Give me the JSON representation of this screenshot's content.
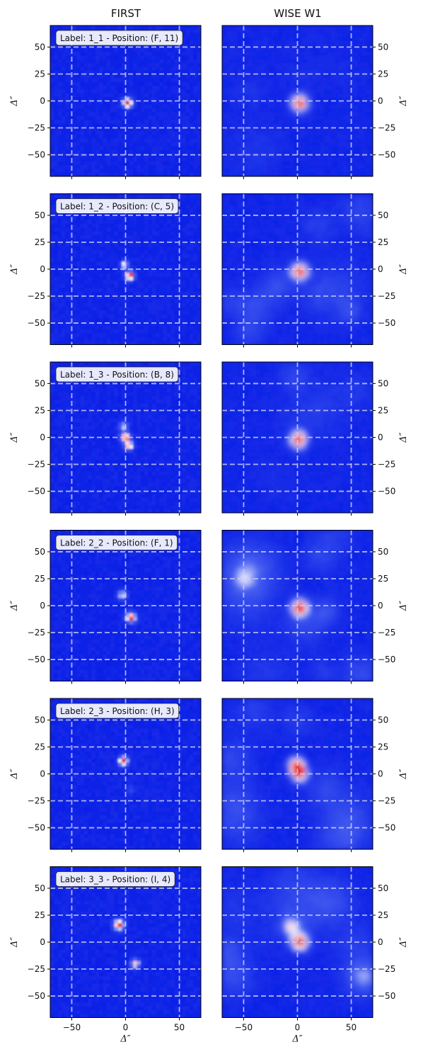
{
  "columns": [
    "FIRST",
    "WISE W1"
  ],
  "axis_label": "Δ″",
  "y_ticks": [
    50,
    25,
    0,
    -25,
    -50
  ],
  "x_ticks": [
    -50,
    0,
    50
  ],
  "tick_labels_y": [
    "50",
    "25",
    "0",
    "−25",
    "−50"
  ],
  "tick_labels_x": [
    "−50",
    "0",
    "50"
  ],
  "extent": [
    -70,
    70
  ],
  "colors": {
    "background": "#0b1fe6",
    "grid": "#c9cdf6",
    "hot": "#e81010"
  },
  "rows": [
    {
      "label": "Label: 1_1 - Position: (F, 11)",
      "first_sources": [
        [
          2,
          -2,
          3.2,
          1.0
        ]
      ],
      "wise_sources": [
        [
          2,
          -2,
          5.5,
          1.0
        ]
      ],
      "wise_texture": 0.25
    },
    {
      "label": "Label: 1_2 - Position: (C, 5)",
      "first_sources": [
        [
          -1,
          4,
          2.6,
          0.7
        ],
        [
          4,
          -6,
          3.0,
          1.0
        ]
      ],
      "wise_sources": [
        [
          2,
          -2,
          5.5,
          1.0
        ]
      ],
      "wise_texture": 0.55
    },
    {
      "label": "Label: 1_3 - Position: (B, 8)",
      "first_sources": [
        [
          -2,
          10,
          3.0,
          0.55
        ],
        [
          0,
          0,
          3.2,
          1.0
        ],
        [
          3,
          -8,
          2.8,
          0.85
        ]
      ],
      "wise_sources": [
        [
          1,
          -2,
          5.5,
          1.0
        ]
      ],
      "wise_texture": 0.3
    },
    {
      "label": "Label: 2_2 - Position: (F, 1)",
      "first_sources": [
        [
          -3,
          10,
          3.0,
          0.6
        ],
        [
          5,
          -11,
          3.2,
          1.0
        ]
      ],
      "wise_sources": [
        [
          2,
          -2,
          5.5,
          1.0
        ],
        [
          -50,
          25,
          6.0,
          0.25
        ]
      ],
      "wise_texture": 0.65
    },
    {
      "label": "Label: 2_3 - Position: (H, 3)",
      "first_sources": [
        [
          -2,
          12,
          3.0,
          1.0
        ],
        [
          5,
          -15,
          2.5,
          0.2
        ]
      ],
      "wise_sources": [
        [
          -1,
          8,
          5.0,
          1.0
        ],
        [
          2,
          0,
          5.0,
          0.9
        ]
      ],
      "wise_texture": 0.55
    },
    {
      "label": "Label: 3_3 - Position: (I, 4)",
      "first_sources": [
        [
          -6,
          16,
          3.4,
          1.0
        ],
        [
          9,
          -20,
          3.0,
          0.8
        ]
      ],
      "wise_sources": [
        [
          2,
          0,
          5.5,
          1.0
        ],
        [
          -6,
          14,
          5.0,
          0.55
        ]
      ],
      "wise_texture": 0.65
    }
  ]
}
